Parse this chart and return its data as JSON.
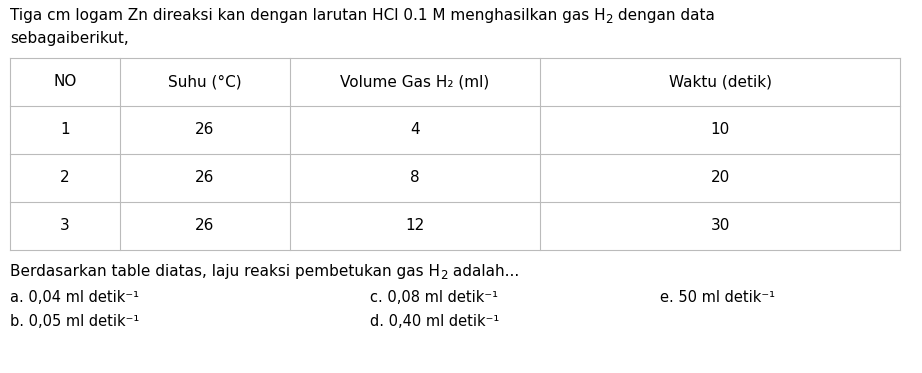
{
  "title_line1": "Tiga cm logam Zn direaksi kan dengan larutan HCl 0.1 M menghasilkan gas H",
  "title_line1_sub": "2",
  "title_line1_end": " dengan data",
  "title_line2": "sebagaiberikut,",
  "headers": [
    "NO",
    "Suhu (°C)",
    "Volume Gas H₂ (ml)",
    "Waktu (detik)"
  ],
  "rows": [
    [
      "1",
      "26",
      "4",
      "10"
    ],
    [
      "2",
      "26",
      "8",
      "20"
    ],
    [
      "3",
      "26",
      "12",
      "30"
    ]
  ],
  "question_start": "Berdasarkan table diatas, laju reaksi pembetukan gas H",
  "question_sub": "2",
  "question_end": " adalah...",
  "options_col1": [
    "a. 0,04 ml detik⁻¹",
    "b. 0,05 ml detik⁻¹"
  ],
  "options_col2": [
    "c. 0,08 ml detik⁻¹",
    "d. 0,40 ml detik⁻¹"
  ],
  "options_col3": [
    "e. 50 ml detik⁻¹",
    ""
  ],
  "bg_color": "#ffffff",
  "text_color": "#000000",
  "line_color": "#bbbbbb",
  "font_size": 11,
  "font_size_options": 10.5
}
